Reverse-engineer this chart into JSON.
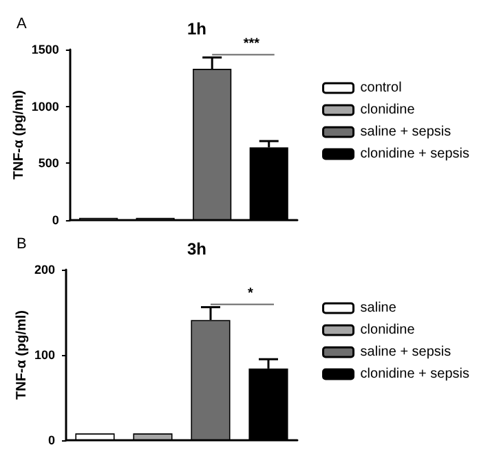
{
  "chart_data": [
    {
      "type": "bar",
      "title": "1h",
      "ylabel": "TNF-α (pg/ml)",
      "annotations": [
        "A",
        "***"
      ],
      "categories": [
        null,
        null,
        null,
        null
      ],
      "ylim": [
        0,
        1500
      ],
      "yticks": [
        0,
        500,
        1000,
        1500
      ],
      "grid": false,
      "legend": "right",
      "series": [
        {
          "name": "control",
          "color": "#ffffff",
          "values": [
            20,
            null,
            null,
            null
          ]
        },
        {
          "name": "clonidine",
          "color": "#a6a6a6",
          "values": [
            null,
            20,
            null,
            null
          ]
        },
        {
          "name": "saline + sepsis",
          "color": "#6e6e6e",
          "values": [
            null,
            null,
            1330,
            null
          ],
          "errors": [
            null,
            null,
            [
              1330,
              1430
            ],
            null
          ]
        },
        {
          "name": "clonidine + sepsis",
          "color": "#000000",
          "values": [
            null,
            null,
            null,
            640
          ],
          "errors": [
            null,
            null,
            null,
            [
              640,
              695
            ]
          ]
        }
      ]
    },
    {
      "type": "bar",
      "title": "3h",
      "ylabel": "TNF-α (pg/ml)",
      "annotations": [
        "B",
        "*"
      ],
      "categories": [
        null,
        null,
        null,
        null
      ],
      "ylim": [
        0,
        200
      ],
      "yticks": [
        0,
        100,
        200
      ],
      "grid": false,
      "legend": "right",
      "series": [
        {
          "name": "saline",
          "color": "#ffffff",
          "values": [
            8,
            null,
            null,
            null
          ]
        },
        {
          "name": "clonidine",
          "color": "#a6a6a6",
          "values": [
            null,
            8,
            null,
            null
          ]
        },
        {
          "name": "saline + sepsis",
          "color": "#6e6e6e",
          "values": [
            null,
            null,
            141,
            null
          ],
          "errors": [
            null,
            null,
            [
              141,
              156
            ],
            null
          ]
        },
        {
          "name": "clonidine + sepsis",
          "color": "#000000",
          "values": [
            null,
            null,
            null,
            84
          ],
          "errors": [
            null,
            null,
            null,
            [
              84,
              95
            ]
          ]
        }
      ]
    }
  ]
}
